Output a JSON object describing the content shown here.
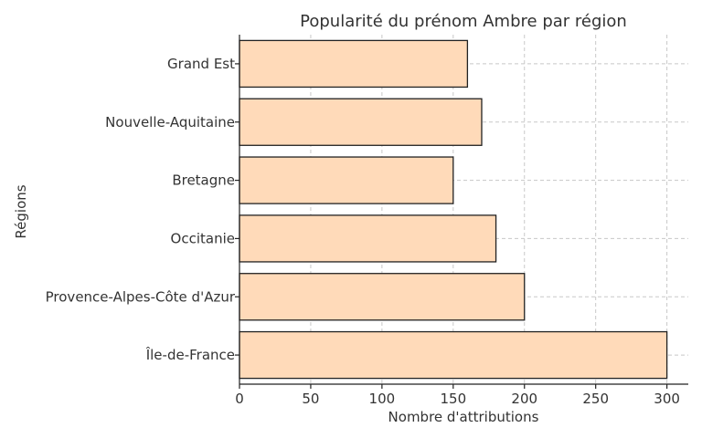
{
  "chart_data": {
    "type": "bar",
    "orientation": "horizontal",
    "title": "Popularité du prénom Ambre par région",
    "xlabel": "Nombre d'attributions",
    "ylabel": "Régions",
    "categories": [
      "Île-de-France",
      "Provence-Alpes-Côte d'Azur",
      "Occitanie",
      "Bretagne",
      "Nouvelle-Aquitaine",
      "Grand Est"
    ],
    "values": [
      300,
      200,
      180,
      150,
      170,
      160
    ],
    "xlim": [
      0,
      315
    ],
    "xticks": [
      0,
      50,
      100,
      150,
      200,
      250,
      300
    ],
    "xtick_labels": [
      "0",
      "50",
      "100",
      "150",
      "200",
      "250",
      "300"
    ],
    "grid": true,
    "colors": {
      "bar_fill": "#ffdab9",
      "bar_edge": "#222222",
      "grid": "#c8c8c8",
      "text": "#333333"
    }
  }
}
